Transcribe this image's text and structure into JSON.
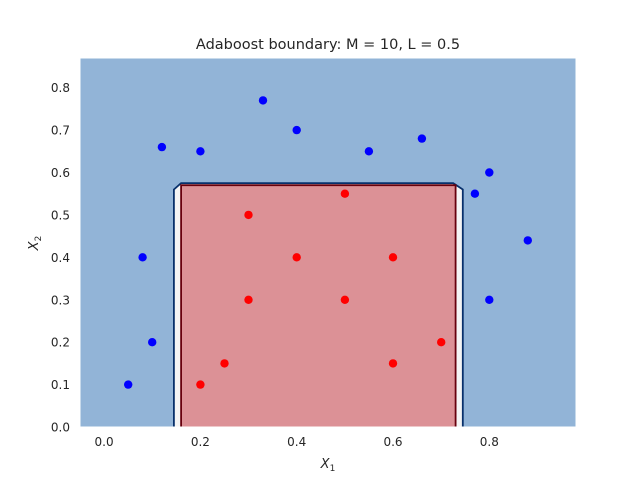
{
  "chart_data": {
    "type": "scatter",
    "title": "Adaboost boundary: M = 10,  L = 0.5",
    "xlabel": {
      "base": "X",
      "sub": "1"
    },
    "ylabel": {
      "base": "X",
      "sub": "2"
    },
    "xlim": [
      -0.05,
      0.98
    ],
    "ylim": [
      0.0,
      0.87
    ],
    "xticks": [
      0.0,
      0.2,
      0.4,
      0.6,
      0.8
    ],
    "xtick_labels": [
      "0.0",
      "0.2",
      "0.4",
      "0.6",
      "0.8"
    ],
    "yticks": [
      0.0,
      0.1,
      0.2,
      0.3,
      0.4,
      0.5,
      0.6,
      0.7,
      0.8
    ],
    "ytick_labels": [
      "0.0",
      "0.1",
      "0.2",
      "0.3",
      "0.4",
      "0.5",
      "0.6",
      "0.7",
      "0.8"
    ],
    "grid": false,
    "legend": "none",
    "colors": {
      "background_region": "#92b4d7",
      "positive_region": "#dc9196",
      "margin_band": "#f4f4f4",
      "outer_contour": "#08306b",
      "inner_contour": "#67000d",
      "blue_points": "#0000ff",
      "red_points": "#ff0000"
    },
    "regions": {
      "outer_contour": [
        [
          0.145,
          0.0
        ],
        [
          0.145,
          0.56
        ],
        [
          0.16,
          0.575
        ],
        [
          0.725,
          0.575
        ],
        [
          0.745,
          0.56
        ],
        [
          0.745,
          0.0
        ]
      ],
      "inner_region": [
        [
          0.16,
          0.0
        ],
        [
          0.16,
          0.57
        ],
        [
          0.73,
          0.57
        ],
        [
          0.73,
          0.0
        ]
      ]
    },
    "series": [
      {
        "color": "#0000ff",
        "points": [
          [
            0.05,
            0.1
          ],
          [
            0.1,
            0.2
          ],
          [
            0.08,
            0.4
          ],
          [
            0.12,
            0.66
          ],
          [
            0.2,
            0.65
          ],
          [
            0.33,
            0.77
          ],
          [
            0.4,
            0.7
          ],
          [
            0.55,
            0.65
          ],
          [
            0.66,
            0.68
          ],
          [
            0.77,
            0.55
          ],
          [
            0.8,
            0.6
          ],
          [
            0.88,
            0.44
          ],
          [
            0.8,
            0.3
          ]
        ]
      },
      {
        "color": "#ff0000",
        "points": [
          [
            0.2,
            0.1
          ],
          [
            0.25,
            0.15
          ],
          [
            0.3,
            0.3
          ],
          [
            0.3,
            0.5
          ],
          [
            0.4,
            0.4
          ],
          [
            0.5,
            0.55
          ],
          [
            0.5,
            0.3
          ],
          [
            0.6,
            0.4
          ],
          [
            0.6,
            0.15
          ],
          [
            0.7,
            0.2
          ]
        ]
      }
    ]
  }
}
